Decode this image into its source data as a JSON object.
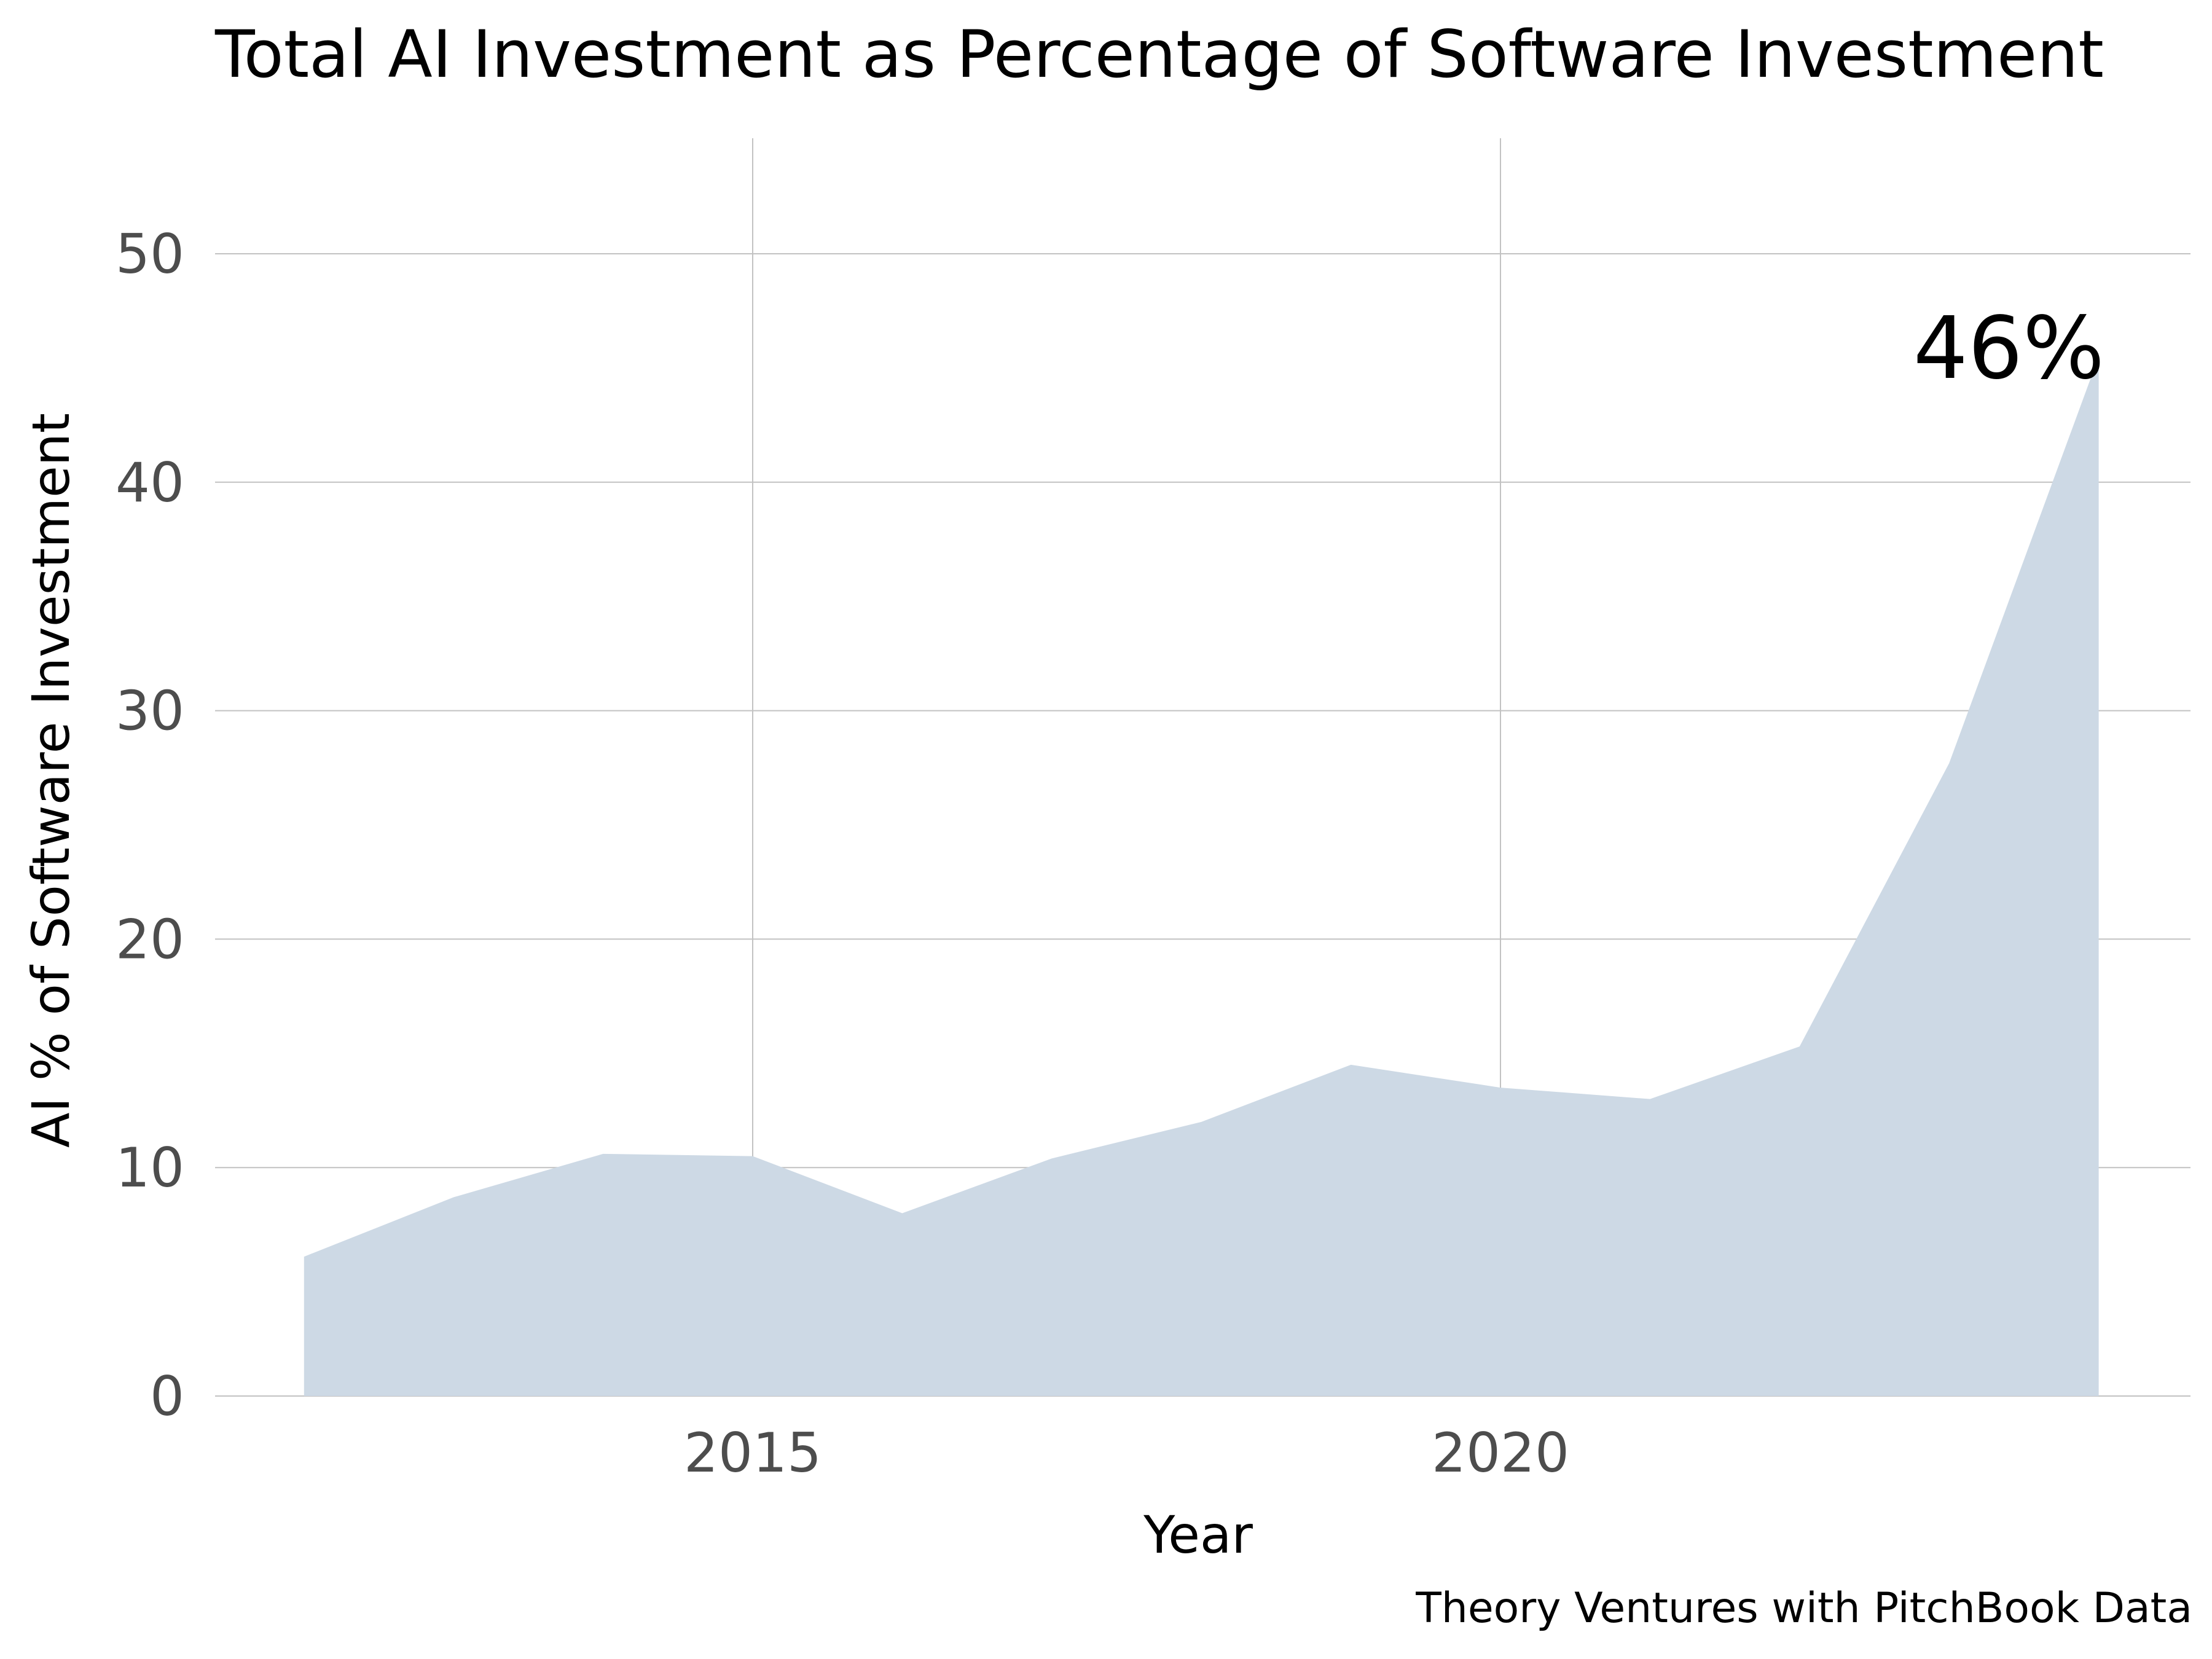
{
  "chart_data": {
    "type": "area",
    "title": "Total AI Investment as Percentage of Software Investment",
    "xlabel": "Year",
    "ylabel": "AI % of Software Investment",
    "source": "Theory Ventures with PitchBook Data",
    "x": [
      2012,
      2013,
      2014,
      2015,
      2016,
      2017,
      2018,
      2019,
      2020,
      2021,
      2022,
      2023,
      2024
    ],
    "series": [
      {
        "values": [
          6.1,
          8.7,
          10.6,
          10.5,
          8.0,
          10.4,
          12.0,
          14.5,
          13.5,
          13.0,
          15.3,
          27.7,
          45.5
        ]
      }
    ],
    "xlim": [
      2011.0,
      2024.6
    ],
    "ylim": [
      0,
      55
    ],
    "x_ticks": [
      "2015",
      "2020"
    ],
    "y_ticks": [
      "0",
      "10",
      "20",
      "30",
      "40",
      "50"
    ],
    "grid": true,
    "fill_color": "#cdd9e5",
    "annotations": [
      {
        "text": "46%",
        "x": 2024,
        "y": 45.5
      }
    ]
  }
}
